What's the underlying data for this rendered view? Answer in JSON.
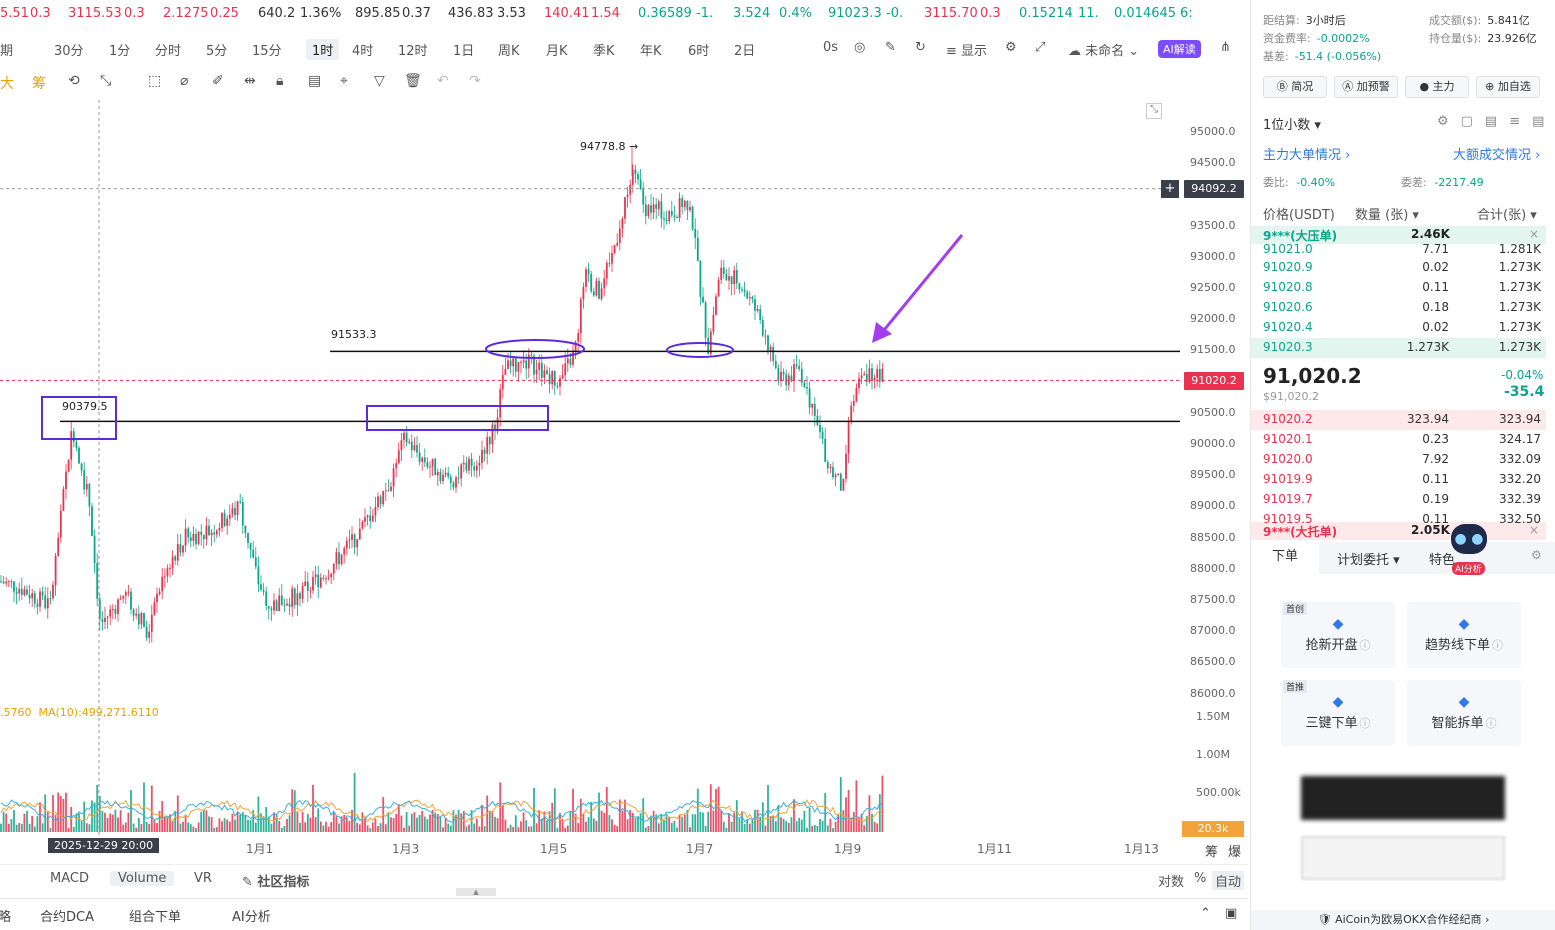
{
  "ticker": [
    {
      "text": "5.51",
      "cls": "red"
    },
    {
      "text": "0.3",
      "cls": "red"
    },
    {
      "text": "3115.53",
      "cls": "red"
    },
    {
      "text": "0.3",
      "cls": "red"
    },
    {
      "text": "2.1275",
      "cls": "red"
    },
    {
      "text": "0.25",
      "cls": "red"
    },
    {
      "text": "640.2",
      "cls": ""
    },
    {
      "text": "1.36%",
      "cls": ""
    },
    {
      "text": "895.85",
      "cls": ""
    },
    {
      "text": "0.37",
      "cls": ""
    },
    {
      "text": "436.83",
      "cls": ""
    },
    {
      "text": "3.53",
      "cls": ""
    },
    {
      "text": "140.41",
      "cls": "red"
    },
    {
      "text": "1.54",
      "cls": "red"
    },
    {
      "text": "0.36589",
      "cls": "green"
    },
    {
      "text": "-1.",
      "cls": "green"
    },
    {
      "text": "3.524",
      "cls": "green"
    },
    {
      "text": "0.4%",
      "cls": "green"
    },
    {
      "text": "91023.3",
      "cls": "green"
    },
    {
      "text": "-0.",
      "cls": "green"
    },
    {
      "text": "3115.70",
      "cls": "red"
    },
    {
      "text": "0.3",
      "cls": "red"
    },
    {
      "text": "0.15214",
      "cls": "green"
    },
    {
      "text": "11.",
      "cls": "green"
    },
    {
      "text": "0.014645",
      "cls": "green"
    },
    {
      "text": "6:",
      "cls": "green"
    }
  ],
  "timeframes": [
    "期",
    "30分",
    "1分",
    "分时",
    "5分",
    "15分",
    "1时",
    "4时",
    "12时",
    "1日",
    "周K",
    "月K",
    "季K",
    "年K",
    "6时",
    "2日"
  ],
  "active_timeframe": "1时",
  "toolbar_right": {
    "countdown": "0s",
    "display": "显示",
    "unnamed": "未命名",
    "ai": "AI解读"
  },
  "draw_tools": [
    "大",
    "筹"
  ],
  "y_axis": [
    "95000.0",
    "94500.0",
    "94000.0",
    "93500.0",
    "93000.0",
    "92500.0",
    "92000.0",
    "91500.0",
    "91000.0",
    "90500.0",
    "90000.0",
    "89500.0",
    "89000.0",
    "88500.0",
    "88000.0",
    "87500.0",
    "87000.0",
    "86500.0",
    "86000.0"
  ],
  "crosshair_price": "94092.2",
  "last_price_tag": "91020.2",
  "annotations": {
    "high": "94778.8",
    "level_upper": "91533.3",
    "level_lower": "90379.5"
  },
  "volume_axis": [
    "1.50M",
    "1.00M",
    "500.00k"
  ],
  "volume_tag": "20.3k",
  "ma_label": ".5760",
  "ma10_label": "MA(10):499,271.6110",
  "x_axis": [
    "1月1",
    "1月3",
    "1月5",
    "1月7",
    "1月9",
    "1月11",
    "1月13"
  ],
  "crosshair_date": "2025-12-29 20:00",
  "axis_corner": [
    "筹",
    "爆"
  ],
  "indicator_tabs": [
    "MACD",
    "Volume",
    "VR",
    "社区指标"
  ],
  "indicator_active": "Volume",
  "scale_opts": [
    "对数",
    "%",
    "自动"
  ],
  "footer_tabs": [
    "略",
    "合约DCA",
    "组合下单",
    "AI分析"
  ],
  "chart_data": {
    "type": "candlestick",
    "ylim": [
      86000,
      95000
    ],
    "high": 94778.8,
    "levels": [
      91533.3,
      90379.5
    ],
    "last": 91020.2,
    "crosshair": 94092.2
  },
  "panel": {
    "info_left": [
      {
        "k": "距结算:",
        "v": "3小时后"
      },
      {
        "k": "资金费率:",
        "v": "-0.0002%"
      },
      {
        "k": "基差:",
        "v": "-51.4 (-0.056%)"
      }
    ],
    "info_right": [
      {
        "k": "成交额($):",
        "v": "5.841亿"
      },
      {
        "k": "持仓量($):",
        "v": "23.926亿"
      }
    ],
    "buttons": [
      "简况",
      "加预警",
      "主力",
      "加自选"
    ],
    "precision": "1位小数",
    "big_order": "主力大单情况",
    "big_trade": "大额成交情况",
    "ratio_label": "委比:",
    "ratio": "-0.40%",
    "diff_label": "委差:",
    "diff": "-2217.49",
    "cols": [
      "价格(USDT)",
      "数量 (张)",
      "合计(张)"
    ],
    "ask_big": {
      "name": "9***(大压单)",
      "qty": "2.46K"
    },
    "asks": [
      {
        "p": "91021.0",
        "q": "7.71",
        "t": "1.281K"
      },
      {
        "p": "91020.9",
        "q": "0.02",
        "t": "1.273K"
      },
      {
        "p": "91020.8",
        "q": "0.11",
        "t": "1.273K"
      },
      {
        "p": "91020.6",
        "q": "0.18",
        "t": "1.273K"
      },
      {
        "p": "91020.4",
        "q": "0.02",
        "t": "1.273K"
      },
      {
        "p": "91020.3",
        "q": "1.273K",
        "t": "1.273K"
      }
    ],
    "mid_price": "91,020.2",
    "mid_sub": "$91,020.2",
    "mid_pct": "-0.04%",
    "mid_chg": "-35.4",
    "bids": [
      {
        "p": "91020.2",
        "q": "323.94",
        "t": "323.94"
      },
      {
        "p": "91020.1",
        "q": "0.23",
        "t": "324.17"
      },
      {
        "p": "91020.0",
        "q": "7.92",
        "t": "332.09"
      },
      {
        "p": "91019.9",
        "q": "0.11",
        "t": "332.20"
      },
      {
        "p": "91019.7",
        "q": "0.19",
        "t": "332.39"
      },
      {
        "p": "91019.5",
        "q": "0.11",
        "t": "332.50"
      }
    ],
    "bid_big": {
      "name": "9***(大托单)",
      "qty": "2.05K"
    },
    "order_tabs": [
      "下单",
      "计划委托",
      "特色"
    ],
    "ai_badge": "AI分析",
    "tiles": [
      {
        "tag": "首创",
        "label": "抢新开盘"
      },
      {
        "tag": "",
        "label": "趋势线下单"
      },
      {
        "tag": "首推",
        "label": "三键下单"
      },
      {
        "tag": "",
        "label": "智能拆单"
      }
    ],
    "footer": "AiCoin为欧易OKX合作经纪商"
  }
}
